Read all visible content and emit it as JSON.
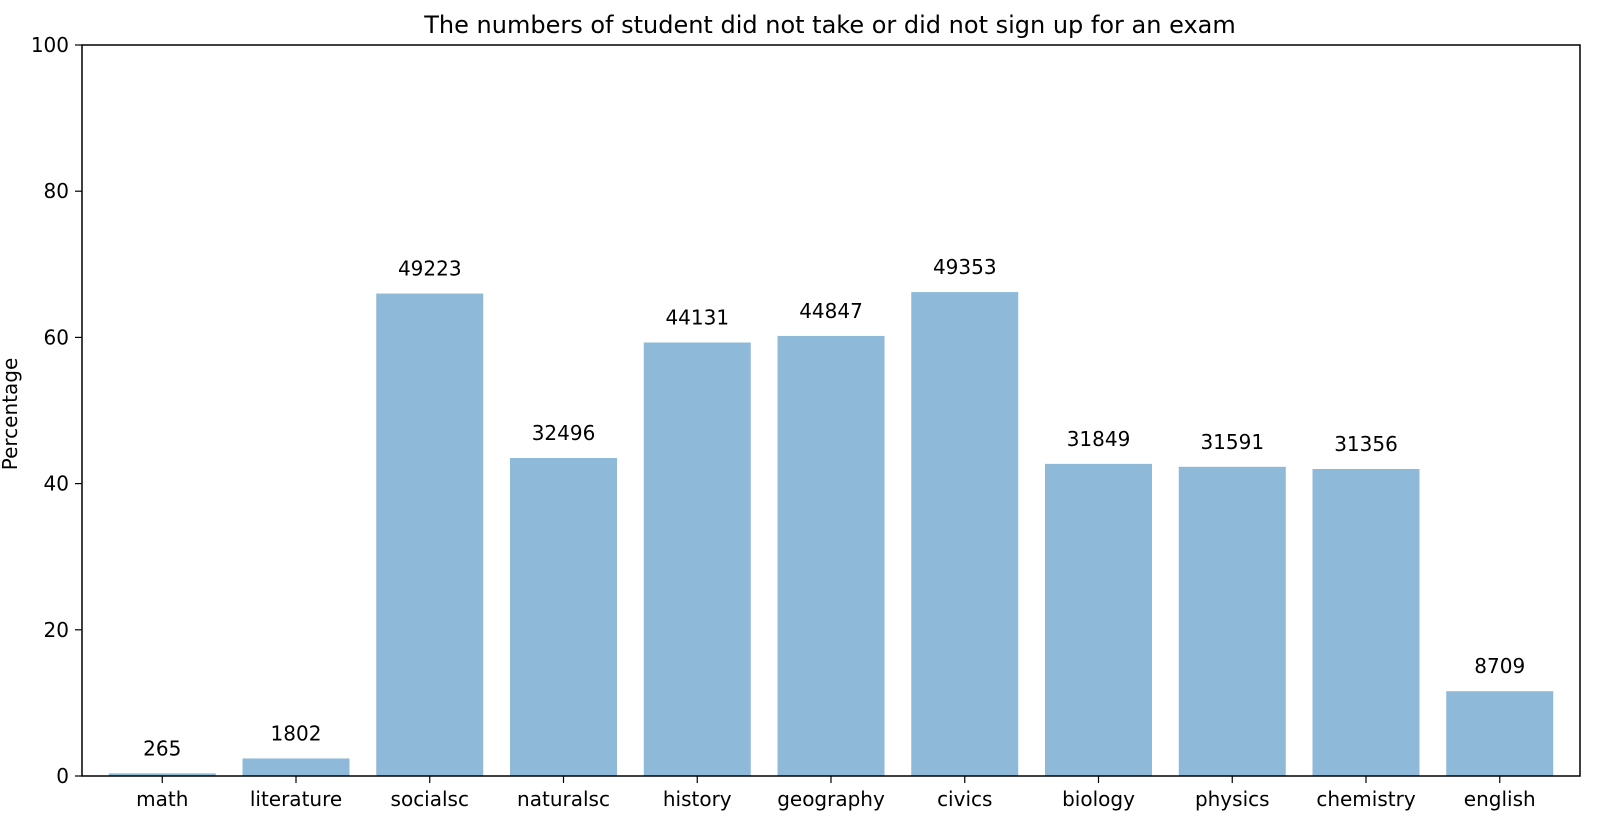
{
  "chart_data": {
    "type": "bar",
    "title": "The numbers of student did not take or did not sign up for an exam",
    "xlabel": "",
    "ylabel": "Percentage",
    "ylim": [
      0,
      100
    ],
    "yticks": [
      0,
      20,
      40,
      60,
      80,
      100
    ],
    "grid": false,
    "categories": [
      "math",
      "literature",
      "socialsc",
      "naturalsc",
      "history",
      "geography",
      "civics",
      "biology",
      "physics",
      "chemistry",
      "english"
    ],
    "values": [
      0.36,
      2.4,
      66.0,
      43.5,
      59.3,
      60.2,
      66.2,
      42.7,
      42.3,
      42.0,
      11.6
    ],
    "data_labels": [
      "265",
      "1802",
      "49223",
      "32496",
      "44131",
      "44847",
      "49353",
      "31849",
      "31591",
      "31356",
      "8709"
    ],
    "bar_color": "#8fb9d9"
  }
}
